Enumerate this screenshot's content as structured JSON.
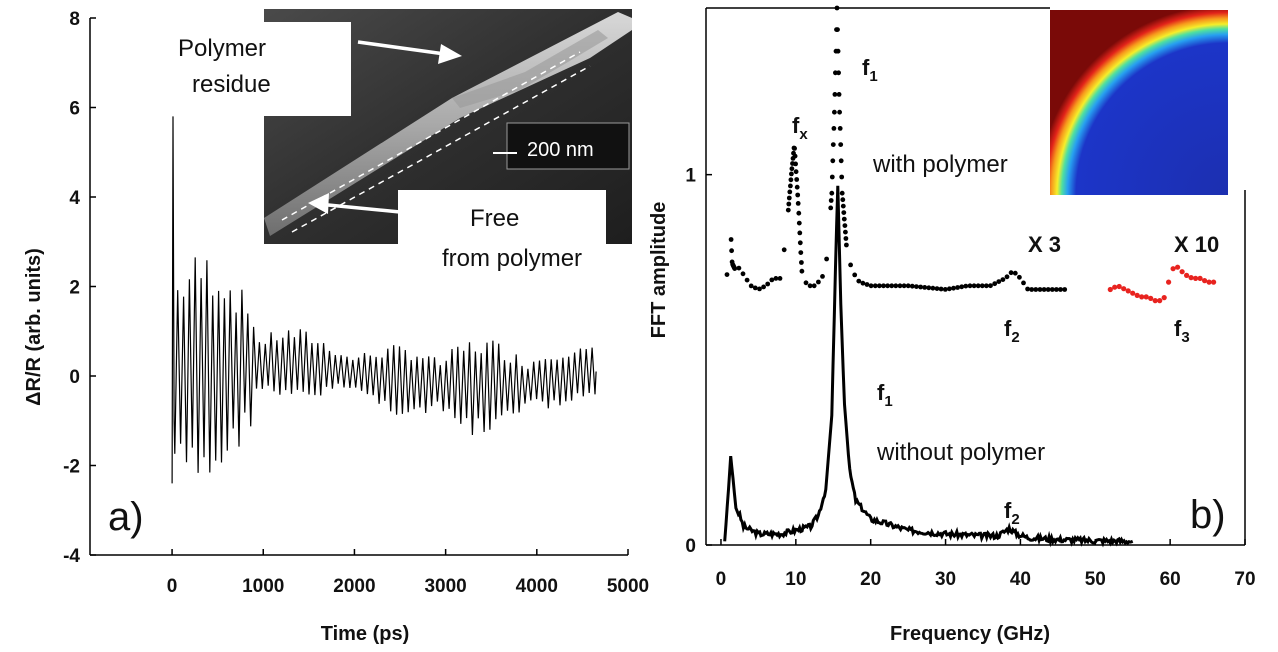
{
  "chart_data": [
    {
      "type": "line",
      "panel_label": "a)",
      "xlabel": "Time (ps)",
      "ylabel": "ΔR/R (arb. units)",
      "xlim": [
        -900,
        5000
      ],
      "ylim": [
        -4,
        8
      ],
      "xticks": [
        0,
        1000,
        2000,
        3000,
        4000,
        5000
      ],
      "yticks": [
        -4,
        -2,
        0,
        2,
        4,
        6,
        8
      ],
      "signal": {
        "t_start": 0,
        "t_end": 4650,
        "peak_value": 5.8,
        "min_value": -3.2,
        "period_ps": 64,
        "description_values": [
          [
            0,
            -2.4
          ],
          [
            15,
            5.8
          ],
          [
            100,
            -3.1
          ],
          [
            300,
            3.3
          ],
          [
            1000,
            1.4
          ],
          [
            2000,
            0.9
          ],
          [
            3000,
            -1.2
          ],
          [
            4650,
            0.1
          ]
        ]
      },
      "inset": {
        "scale_bar": "200 nm",
        "label_top": [
          "Polymer",
          "residue"
        ],
        "label_bottom": [
          "Free",
          "from polymer"
        ]
      }
    },
    {
      "type": "line",
      "panel_label": "b)",
      "xlabel": "Frequency (GHz)",
      "ylabel": "FFT amplitude",
      "xlim": [
        -2,
        70
      ],
      "ylim": [
        0,
        1.45
      ],
      "xticks": [
        0,
        10,
        20,
        30,
        40,
        50,
        60,
        70
      ],
      "yticks": [
        0,
        1
      ],
      "series": [
        {
          "name": "without polymer",
          "style": "solid",
          "color": "#000000",
          "x": [
            0.5,
            1.0,
            1.3,
            1.6,
            2.0,
            2.5,
            3,
            5,
            8,
            10,
            12,
            13,
            14,
            14.8,
            15.3,
            15.6,
            16.0,
            16.5,
            17.2,
            18,
            20,
            25,
            30,
            35,
            37,
            38.5,
            39.5,
            41,
            45,
            50,
            55
          ],
          "y": [
            0.01,
            0.15,
            0.24,
            0.18,
            0.1,
            0.08,
            0.05,
            0.03,
            0.03,
            0.04,
            0.05,
            0.08,
            0.15,
            0.35,
            0.75,
            0.97,
            0.65,
            0.38,
            0.2,
            0.12,
            0.07,
            0.04,
            0.03,
            0.025,
            0.025,
            0.045,
            0.03,
            0.02,
            0.015,
            0.012,
            0.01
          ]
        },
        {
          "name": "with polymer",
          "style": "dotted",
          "color": "#000000",
          "x": [
            0.8,
            1.2,
            1.5,
            2.0,
            2.5,
            3,
            4,
            5,
            6,
            7,
            8,
            8.8,
            9.4,
            9.8,
            10.3,
            10.8,
            11.5,
            12.5,
            13.5,
            14.2,
            14.8,
            15.2,
            15.5,
            15.8,
            16.2,
            16.8,
            17.5,
            18.5,
            20,
            25,
            30,
            33,
            36,
            38,
            39,
            40,
            41,
            43,
            46
          ],
          "y": [
            0.73,
            0.89,
            0.76,
            0.74,
            0.75,
            0.73,
            0.7,
            0.69,
            0.7,
            0.72,
            0.72,
            0.86,
            1.0,
            1.08,
            0.93,
            0.74,
            0.7,
            0.7,
            0.72,
            0.78,
            0.95,
            1.2,
            1.45,
            1.2,
            0.95,
            0.8,
            0.74,
            0.71,
            0.7,
            0.7,
            0.69,
            0.7,
            0.7,
            0.72,
            0.74,
            0.72,
            0.69,
            0.69,
            0.69
          ]
        },
        {
          "name": "with polymer X 10",
          "style": "dotted",
          "color": "#e8231f",
          "x": [
            52,
            53,
            54,
            55,
            56,
            57,
            58,
            59,
            59.5,
            60,
            60.5,
            61,
            62,
            63,
            64,
            65,
            66
          ],
          "y": [
            0.69,
            0.7,
            0.69,
            0.68,
            0.67,
            0.67,
            0.66,
            0.66,
            0.68,
            0.73,
            0.75,
            0.75,
            0.73,
            0.72,
            0.72,
            0.71,
            0.71
          ]
        }
      ],
      "annotations": {
        "fx": "f",
        "fx_sub": "x",
        "f1_top": "f",
        "f1_top_sub": "1",
        "with_polymer": "with polymer",
        "x3": "X 3",
        "x10": "X 10",
        "f2_top": "f",
        "f2_top_sub": "2",
        "f3": "f",
        "f3_sub": "3",
        "f1_bottom": "f",
        "f1_bottom_sub": "1",
        "without_polymer": "without polymer",
        "f2_bottom": "f",
        "f2_bottom_sub": "2"
      }
    }
  ],
  "colors": {
    "axis": "#000000",
    "red_series": "#e8231f"
  }
}
